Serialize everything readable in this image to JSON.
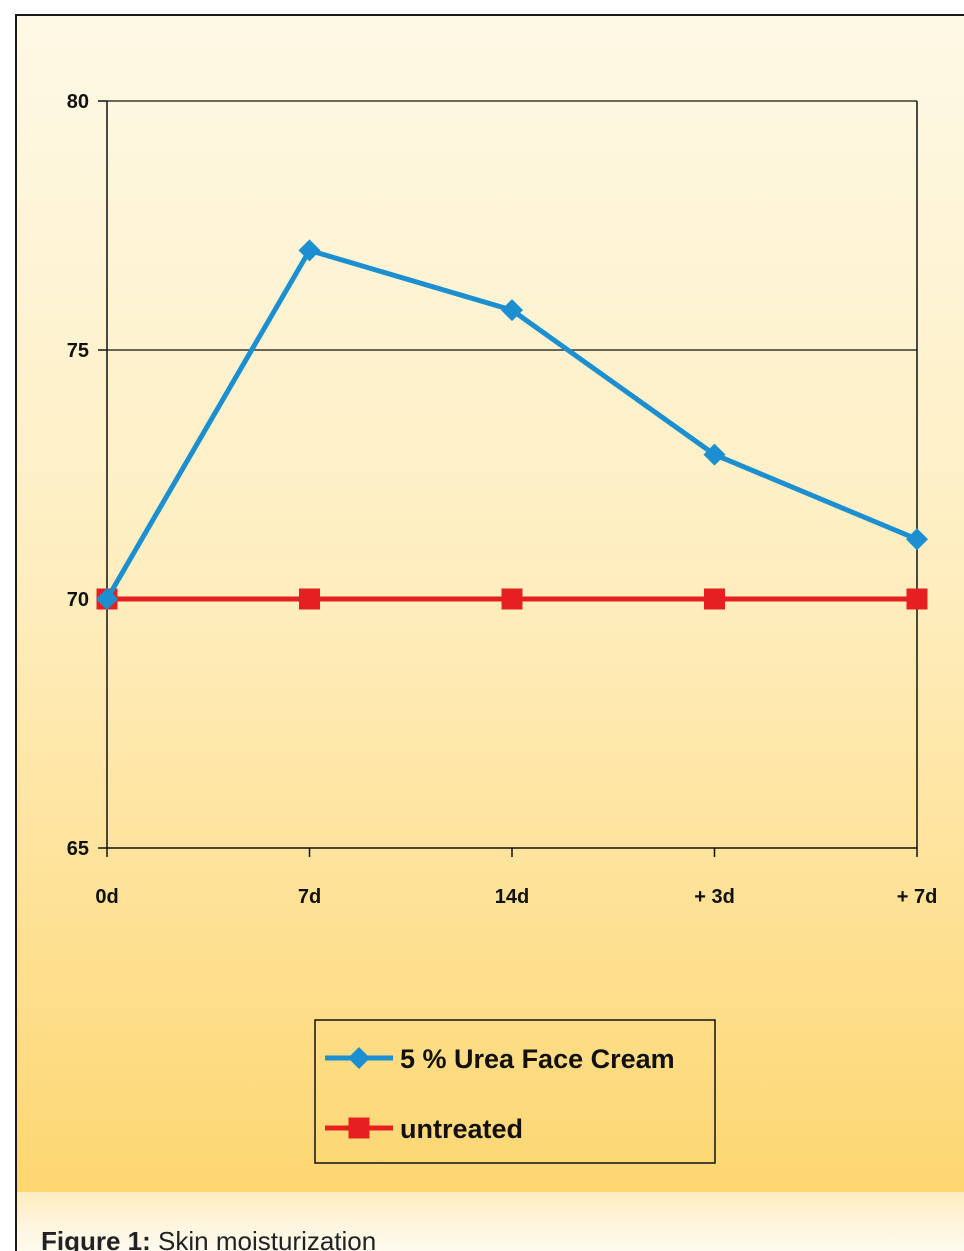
{
  "caption": {
    "label": "Figure 1:",
    "text": "Skin moisturization"
  },
  "colors": {
    "series_blue": "#1b8fd0",
    "series_red": "#e62020",
    "axis": "#111111",
    "background_top": "#fef9e6",
    "background_bottom": "#fcd468"
  },
  "chart_data": {
    "type": "line",
    "categories": [
      "0d",
      "7d",
      "14d",
      "+ 3d",
      "+ 7d"
    ],
    "ylim": [
      65,
      80
    ],
    "yticks": [
      65,
      70,
      75,
      80
    ],
    "grid": "horizontal lines at major y ticks",
    "legend_placement": "bottom-center",
    "series": [
      {
        "name": "5 % Urea Face Cream",
        "marker": "diamond",
        "color": "#1b8fd0",
        "values": [
          70.0,
          77.0,
          75.8,
          72.9,
          71.2
        ]
      },
      {
        "name": "untreated",
        "marker": "square",
        "color": "#e62020",
        "values": [
          70.0,
          70.0,
          70.0,
          70.0,
          70.0
        ]
      }
    ]
  }
}
